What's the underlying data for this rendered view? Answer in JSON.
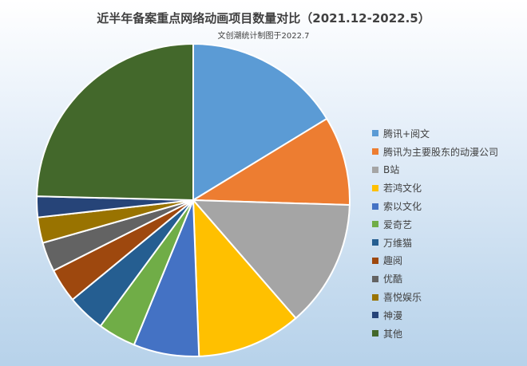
{
  "chart_data": {
    "type": "pie",
    "title": "近半年备案重点网络动画项目数量对比（2021.12-2022.5）",
    "subtitle": "文创潮统计制图于2022.7",
    "categories": [
      "腾讯+阅文",
      "腾讯为主要股东的动漫公司",
      "B站",
      "若鸿文化",
      "索以文化",
      "爱奇艺",
      "万维猫",
      "趣阅",
      "优酷",
      "喜悦娱乐",
      "神漫",
      "其他"
    ],
    "values": [
      16.6,
      9.4,
      13.4,
      11.0,
      6.9,
      4.0,
      4.0,
      3.6,
      3.1,
      2.7,
      2.2,
      25.1
    ],
    "unit": "%",
    "colors": [
      "#5b9bd5",
      "#ed7d31",
      "#a5a5a5",
      "#ffc000",
      "#4472c4",
      "#70ad47",
      "#255e91",
      "#9e480e",
      "#636363",
      "#997300",
      "#264478",
      "#43682b"
    ],
    "legend_position": "right",
    "start_angle_deg": 0,
    "direction": "clockwise"
  }
}
